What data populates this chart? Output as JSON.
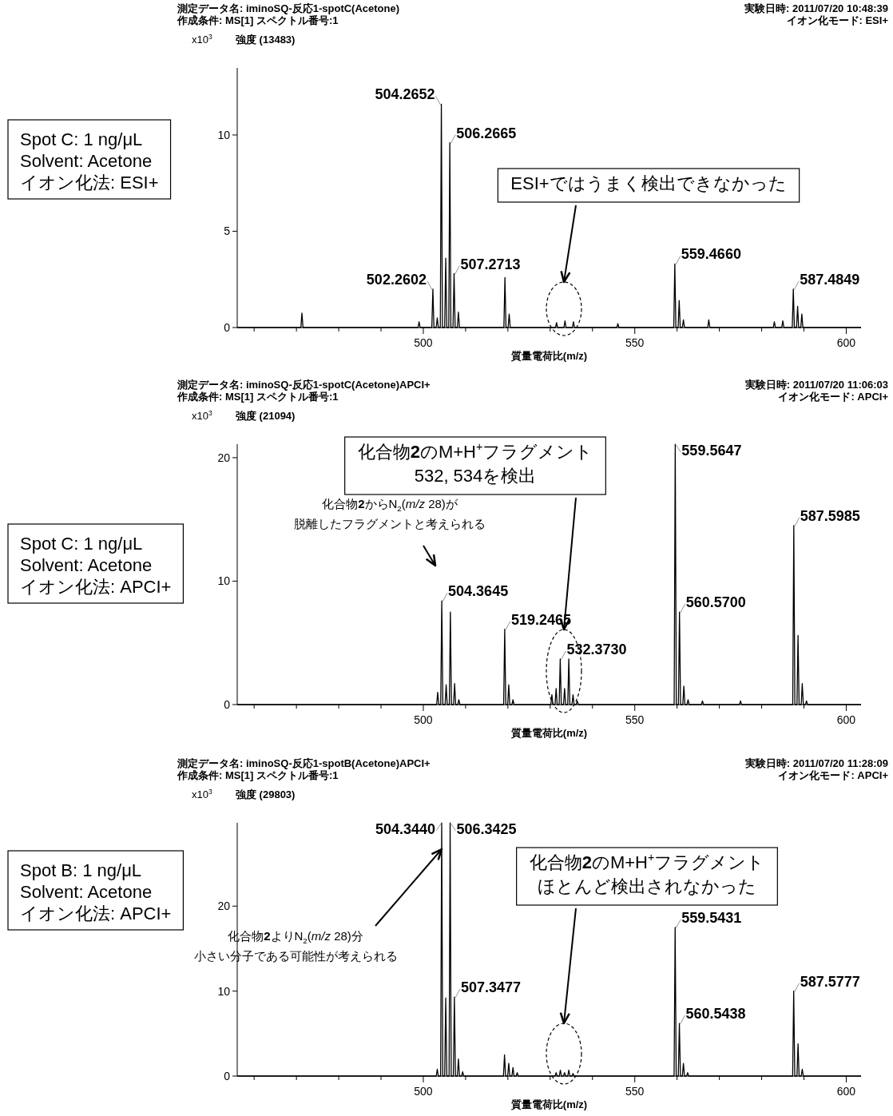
{
  "chart_data": [
    {
      "type": "line",
      "color": "#000000",
      "title": "測定データ名: iminoSQ-反応1-spotC(Acetone)",
      "subtitle": "作成条件: MS[1] スペクトル番号:1",
      "xlabel": "質量電荷比(m/z)",
      "ylabel": "強度 (13483)",
      "xlim": [
        456,
        603.5
      ],
      "ylim": [
        0,
        13.483
      ],
      "xticks": [
        {
          "value": 460,
          "label": null
        },
        {
          "value": 470,
          "label": null
        },
        {
          "value": 480,
          "label": null
        },
        {
          "value": 490,
          "label": null
        },
        500,
        {
          "value": 510,
          "label": null
        },
        {
          "value": 520,
          "label": null
        },
        {
          "value": 530,
          "label": null
        },
        {
          "value": 540,
          "label": null
        },
        550,
        {
          "value": 560,
          "label": null
        },
        {
          "value": 570,
          "label": null
        },
        {
          "value": 580,
          "label": null
        },
        {
          "value": 590,
          "label": null
        },
        600
      ],
      "yticks": [
        0,
        5,
        10
      ],
      "x": [
        456,
        471.05,
        471.3,
        471.55,
        498.75,
        499,
        499.25,
        502.0102,
        502.2602,
        502.5102,
        503.05,
        503.3,
        503.55,
        504.0152,
        504.2652,
        504.5152,
        505.05,
        505.3,
        505.55,
        506.0165,
        506.2665,
        506.5165,
        507.0213,
        507.2713,
        507.5213,
        508.05,
        508.3,
        508.55,
        519.05,
        519.3,
        519.55,
        520.05,
        520.3,
        520.55,
        531.25,
        531.5,
        531.75,
        533.25,
        533.5,
        533.75,
        535.25,
        535.5,
        535.75,
        545.75,
        546,
        546.25,
        559.216,
        559.466,
        559.716,
        560.25,
        560.5,
        560.75,
        561.25,
        561.5,
        561.75,
        567.25,
        567.5,
        567.75,
        582.75,
        583,
        583.25,
        584.75,
        585,
        585.25,
        587.2349,
        587.4849,
        587.7349,
        588.25,
        588.5,
        588.75,
        589.25,
        589.5,
        589.75,
        603.5
      ],
      "values": [
        0,
        0,
        0.75,
        0,
        0,
        0.3,
        0,
        0,
        2.0,
        0,
        0,
        0.5,
        0,
        0,
        11.6,
        0,
        0,
        3.6,
        0,
        0,
        9.6,
        0,
        0,
        2.8,
        0,
        0,
        0.8,
        0,
        0,
        2.6,
        0,
        0,
        0.7,
        0,
        0,
        0.25,
        0,
        0,
        0.35,
        0,
        0,
        0.3,
        0,
        0,
        0.2,
        0,
        0,
        3.3,
        0,
        0,
        1.4,
        0,
        0,
        0.4,
        0,
        0,
        0.4,
        0,
        0,
        0.3,
        0,
        0,
        0.35,
        0,
        0,
        2.0,
        0,
        0,
        1.1,
        0,
        0,
        0.7,
        0,
        0
      ],
      "annotations": [
        "実験日時: 2011/07/20 10:48:39",
        "イオン化モード: ESI+",
        "x10$^{3}$",
        "Spot C: 1 ng/μL",
        "Solvent: Acetone",
        "イオン化法: ESI+",
        "ESI+ではうまく検出できなかった",
        {
          "text": "502.2602",
          "x": 502.2602,
          "y": 2.0
        },
        {
          "text": "504.2652",
          "x": 504.2652,
          "y": 11.6
        },
        {
          "text": "506.2665",
          "x": 506.2665,
          "y": 9.6
        },
        {
          "text": "507.2713",
          "x": 507.2713,
          "y": 2.8
        },
        {
          "text": "559.4660",
          "x": 559.466,
          "y": 3.3
        },
        {
          "text": "587.4849",
          "x": 587.4849,
          "y": 2.0
        }
      ]
    },
    {
      "type": "line",
      "color": "#000000",
      "title": "測定データ名: iminoSQ-反応1-spotC(Acetone)APCI+",
      "subtitle": "作成条件: MS[1] スペクトル番号:1",
      "xlabel": "質量電荷比(m/z)",
      "ylabel": "強度 (21094)",
      "xlim": [
        456,
        603.5
      ],
      "ylim": [
        0,
        21.094
      ],
      "xticks": [
        {
          "value": 460,
          "label": null
        },
        {
          "value": 470,
          "label": null
        },
        {
          "value": 480,
          "label": null
        },
        {
          "value": 490,
          "label": null
        },
        500,
        {
          "value": 510,
          "label": null
        },
        {
          "value": 520,
          "label": null
        },
        {
          "value": 530,
          "label": null
        },
        {
          "value": 540,
          "label": null
        },
        550,
        {
          "value": 560,
          "label": null
        },
        {
          "value": 570,
          "label": null
        },
        {
          "value": 580,
          "label": null
        },
        {
          "value": 590,
          "label": null
        },
        600
      ],
      "yticks": [
        0,
        10,
        20
      ],
      "x": [
        456,
        503.15,
        503.4,
        503.65,
        504.1145,
        504.3645,
        504.6145,
        505.15,
        505.4,
        505.65,
        506.15,
        506.4,
        506.65,
        507.15,
        507.4,
        507.65,
        508.15,
        508.4,
        508.65,
        518.9965,
        519.2465,
        519.4965,
        519.95,
        520.2,
        520.45,
        520.95,
        521.2,
        521.45,
        530.15,
        530.4,
        530.65,
        531.15,
        531.4,
        531.65,
        532.123,
        532.373,
        532.623,
        533.15,
        533.4,
        533.65,
        534.15,
        534.4,
        534.65,
        535.15,
        535.4,
        535.65,
        536.15,
        536.4,
        536.65,
        559.3147,
        559.5647,
        559.8147,
        560.32,
        560.57,
        560.82,
        561.35,
        561.6,
        561.85,
        562.35,
        562.6,
        562.85,
        565.75,
        566,
        566.25,
        574.75,
        575,
        575.25,
        587.3485,
        587.5985,
        587.8485,
        588.35,
        588.6,
        588.85,
        589.35,
        589.6,
        589.85,
        590.35,
        590.6,
        590.85,
        603.5
      ],
      "values": [
        0,
        0,
        1.0,
        0,
        0,
        8.4,
        0,
        0,
        1.6,
        0,
        0,
        7.5,
        0,
        0,
        1.7,
        0,
        0,
        0.4,
        0,
        0,
        6.1,
        0,
        0,
        1.6,
        0,
        0,
        0.4,
        0,
        0,
        0.8,
        0,
        0,
        1.3,
        0,
        0,
        3.7,
        0,
        0,
        1.3,
        0,
        0,
        3.7,
        0,
        0,
        0.8,
        0,
        0,
        0.3,
        0,
        0,
        21.09,
        0,
        0,
        7.5,
        0,
        0,
        1.5,
        0,
        0,
        0.4,
        0,
        0,
        0.3,
        0,
        0,
        0.3,
        0,
        0,
        14.5,
        0,
        0,
        5.6,
        0,
        0,
        1.7,
        0,
        0,
        0.3,
        0,
        0
      ],
      "annotations": [
        "実験日時: 2011/07/20 11:06:03",
        "イオン化モード: APCI+",
        "x10$^{3}$",
        "Spot C: 1 ng/μL",
        "Solvent: Acetone",
        "イオン化法: APCI+",
        "化合物**2**のM+H$^{+}$フラグメント",
        "532, 534を検出",
        "化合物**2**からN$_{2}$(*m/z* 28)が",
        "脱離したフラグメントと考えられる",
        {
          "text": "504.3645",
          "x": 504.3645,
          "y": 8.4
        },
        {
          "text": "519.2465",
          "x": 519.2465,
          "y": 6.1
        },
        {
          "text": "532.3730",
          "x": 532.373,
          "y": 3.7
        },
        {
          "text": "559.5647",
          "x": 559.5647,
          "y": 21.09
        },
        {
          "text": "560.5700",
          "x": 560.57,
          "y": 7.5
        },
        {
          "text": "587.5985",
          "x": 587.5985,
          "y": 14.5
        }
      ]
    },
    {
      "type": "line",
      "color": "#000000",
      "title": "測定データ名: iminoSQ-反応1-spotB(Acetone)APCI+",
      "subtitle": "作成条件: MS[1] スペクトル番号:1",
      "xlabel": "質量電荷比(m/z)",
      "ylabel": "強度 (29803)",
      "xlim": [
        456,
        603.5
      ],
      "ylim": [
        0,
        29.803
      ],
      "xticks": [
        {
          "value": 460,
          "label": null
        },
        {
          "value": 470,
          "label": null
        },
        {
          "value": 480,
          "label": null
        },
        {
          "value": 490,
          "label": null
        },
        500,
        {
          "value": 510,
          "label": null
        },
        {
          "value": 520,
          "label": null
        },
        {
          "value": 530,
          "label": null
        },
        {
          "value": 540,
          "label": null
        },
        550,
        {
          "value": 560,
          "label": null
        },
        {
          "value": 570,
          "label": null
        },
        {
          "value": 580,
          "label": null
        },
        {
          "value": 590,
          "label": null
        },
        600
      ],
      "yticks": [
        0,
        10,
        20
      ],
      "x": [
        456,
        503.05,
        503.3,
        503.55,
        504.094,
        504.344,
        504.594,
        505.05,
        505.3,
        505.55,
        506.0925,
        506.3425,
        506.5925,
        507.0977,
        507.3477,
        507.5977,
        508.05,
        508.3,
        508.55,
        509.05,
        509.3,
        509.55,
        518.95,
        519.2,
        519.45,
        519.95,
        520.2,
        520.45,
        520.95,
        521.2,
        521.45,
        521.95,
        522.2,
        522.45,
        531.15,
        531.4,
        531.65,
        532.15,
        532.4,
        532.65,
        533.15,
        533.4,
        533.65,
        534.15,
        534.4,
        534.65,
        535.15,
        535.4,
        535.65,
        559.2931,
        559.5431,
        559.7931,
        560.2938,
        560.5438,
        560.7938,
        561.25,
        561.5,
        561.75,
        562.25,
        562.5,
        562.75,
        587.3277,
        587.5777,
        587.8277,
        588.35,
        588.6,
        588.85,
        589.35,
        589.6,
        589.85,
        603.5
      ],
      "values": [
        0,
        0,
        0.8,
        0,
        0,
        29.8,
        0,
        0,
        9.2,
        0,
        0,
        29.8,
        0,
        0,
        9.3,
        0,
        0,
        2.0,
        0,
        0,
        0.5,
        0,
        0,
        2.5,
        0,
        0,
        1.5,
        0,
        0,
        1.0,
        0,
        0,
        0.4,
        0,
        0,
        0.4,
        0,
        0,
        0.7,
        0,
        0,
        0.4,
        0,
        0,
        0.7,
        0,
        0,
        0.3,
        0,
        0,
        17.5,
        0,
        0,
        6.2,
        0,
        0,
        1.5,
        0,
        0,
        0.4,
        0,
        0,
        10.0,
        0,
        0,
        3.8,
        0,
        0,
        0.8,
        0,
        0
      ],
      "annotations": [
        "実験日時: 2011/07/20 11:28:09",
        "イオン化モード: APCI+",
        "x10$^{3}$",
        "Spot B: 1 ng/μL",
        "Solvent: Acetone",
        "イオン化法: APCI+",
        "化合物**2**のM+H$^{+}$フラグメント",
        "ほとんど検出されなかった",
        "小さい分子である可能性が考えられる",
        {
          "text": "化合物**2**よりN$_{2}$(*m/z* 28)分",
          "x": 504.344,
          "y": 26.7
        },
        {
          "text": "504.3440",
          "x": 504.344,
          "y": 29.8
        },
        {
          "text": "506.3425",
          "x": 506.3425,
          "y": 29.8
        },
        {
          "text": "507.3477",
          "x": 507.3477,
          "y": 9.3
        },
        {
          "text": "559.5431",
          "x": 559.5431,
          "y": 17.5
        },
        {
          "text": "560.5438",
          "x": 560.5438,
          "y": 6.2
        },
        {
          "text": "587.5777",
          "x": 587.5777,
          "y": 10.0
        }
      ]
    }
  ]
}
